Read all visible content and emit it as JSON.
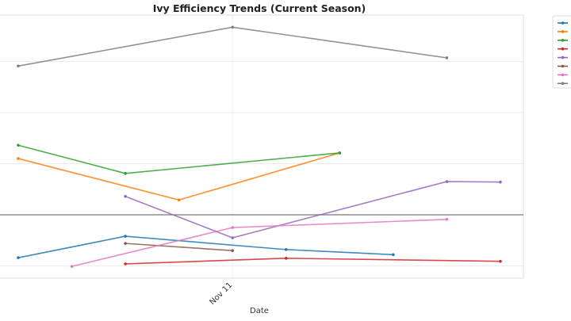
{
  "chart_data": {
    "type": "line",
    "title": "Ivy Efficiency Trends (Current Season)",
    "xlabel": "Date",
    "ylabel": "",
    "x_tick_labels": [
      "Nov 11"
    ],
    "x_dates": [
      "Nov 7",
      "Nov 8",
      "Nov 9",
      "Nov 10",
      "Nov 11",
      "Nov 12",
      "Nov 13",
      "Nov 14",
      "Nov 15",
      "Nov 16"
    ],
    "ylim": [
      -1.25,
      3.9
    ],
    "grid": true,
    "zero_line": true,
    "legend_placement": "outside-right",
    "series": [
      {
        "color": "#1f77b4",
        "points": [
          [
            "Nov 7",
            -0.84
          ],
          [
            "Nov 9",
            -0.42
          ],
          [
            "Nov 12",
            -0.68
          ],
          [
            "Nov 14",
            -0.78
          ]
        ]
      },
      {
        "color": "#ff7f0e",
        "points": [
          [
            "Nov 7",
            1.1
          ],
          [
            "Nov 10",
            0.29
          ],
          [
            "Nov 13",
            1.21
          ]
        ]
      },
      {
        "color": "#2ca02c",
        "points": [
          [
            "Nov 7",
            1.36
          ],
          [
            "Nov 9",
            0.81
          ],
          [
            "Nov 13",
            1.21
          ]
        ]
      },
      {
        "color": "#d62728",
        "points": [
          [
            "Nov 9",
            -0.96
          ],
          [
            "Nov 12",
            -0.85
          ],
          [
            "Nov 16",
            -0.91
          ]
        ]
      },
      {
        "color": "#9467bd",
        "points": [
          [
            "Nov 9",
            0.36
          ],
          [
            "Nov 11",
            -0.45
          ],
          [
            "Nov 15",
            0.65
          ],
          [
            "Nov 16",
            0.64
          ]
        ]
      },
      {
        "color": "#8c564b",
        "points": [
          [
            "Nov 9",
            -0.56
          ],
          [
            "Nov 11",
            -0.7
          ]
        ]
      },
      {
        "color": "#e377c2",
        "points": [
          [
            "Nov 8",
            -1.01
          ],
          [
            "Nov 11",
            -0.25
          ],
          [
            "Nov 15",
            -0.09
          ]
        ]
      },
      {
        "color": "#7f7f7f",
        "points": [
          [
            "Nov 7",
            2.91
          ],
          [
            "Nov 11",
            3.67
          ],
          [
            "Nov 15",
            3.07
          ]
        ]
      }
    ]
  }
}
